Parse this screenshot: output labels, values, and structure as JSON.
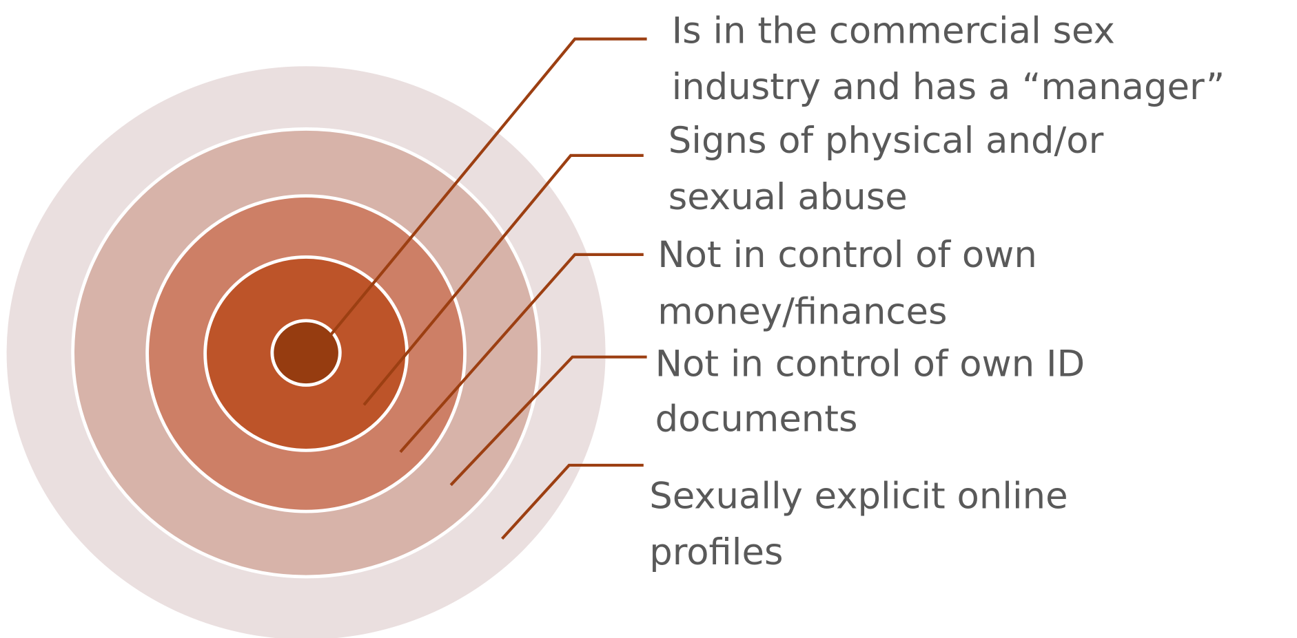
{
  "indicators": [
    {
      "lines": [
        "Is in the commercial sex",
        "industry and has a “manager”"
      ]
    },
    {
      "lines": [
        "Signs of physical and/or",
        "sexual abuse"
      ]
    },
    {
      "lines": [
        "Not in control of own",
        "money/finances"
      ]
    },
    {
      "lines": [
        "Not in control of own ID",
        "documents"
      ]
    },
    {
      "lines": [
        "Sexually explicit online",
        "profiles"
      ]
    }
  ]
}
